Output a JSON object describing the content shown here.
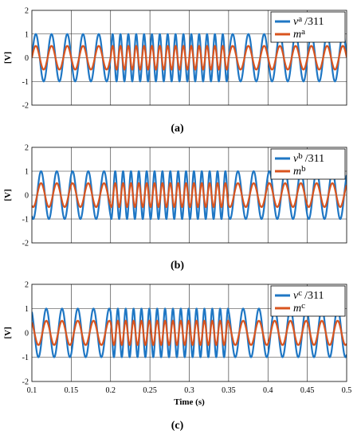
{
  "chart_data": [
    {
      "type": "line",
      "caption": "(a)",
      "xlabel": "",
      "ylabel": "[V]",
      "xlim": [
        0.1,
        0.5
      ],
      "ylim": [
        -2,
        2
      ],
      "x_ticks": [
        0.1,
        0.15,
        0.2,
        0.25,
        0.3,
        0.35,
        0.4,
        0.45,
        0.5
      ],
      "y_ticks": [
        -2,
        -1,
        0,
        1,
        2
      ],
      "show_x_tick_labels": false,
      "grid": true,
      "legend_position": "top-right",
      "waveform": {
        "shape": "sinusoid",
        "time_range": [
          0.1,
          0.5
        ],
        "frequency_segments": [
          {
            "t_start": 0.1,
            "t_end": 0.2,
            "frequency_hz": 50
          },
          {
            "t_start": 0.2,
            "t_end": 0.35,
            "frequency_hz": 100
          },
          {
            "t_start": 0.35,
            "t_end": 0.5,
            "frequency_hz": 50
          }
        ]
      },
      "series": [
        {
          "name": "v",
          "sup": "a",
          "suffix": "/311",
          "amplitude": 1.0,
          "phase_deg": 0,
          "color": "#1f77c4"
        },
        {
          "name": "m",
          "sup": "a",
          "suffix": "",
          "amplitude": 0.5,
          "phase_deg": 0,
          "color": "#d9541e"
        }
      ]
    },
    {
      "type": "line",
      "caption": "(b)",
      "xlabel": "",
      "ylabel": "[V]",
      "xlim": [
        0.1,
        0.5
      ],
      "ylim": [
        -2,
        2
      ],
      "x_ticks": [
        0.1,
        0.15,
        0.2,
        0.25,
        0.3,
        0.35,
        0.4,
        0.45,
        0.5
      ],
      "y_ticks": [
        -2,
        -1,
        0,
        1,
        2
      ],
      "show_x_tick_labels": false,
      "grid": true,
      "legend_position": "top-right",
      "waveform": {
        "shape": "sinusoid",
        "time_range": [
          0.1,
          0.5
        ],
        "frequency_segments": [
          {
            "t_start": 0.1,
            "t_end": 0.2,
            "frequency_hz": 50
          },
          {
            "t_start": 0.2,
            "t_end": 0.35,
            "frequency_hz": 100
          },
          {
            "t_start": 0.35,
            "t_end": 0.5,
            "frequency_hz": 50
          }
        ]
      },
      "series": [
        {
          "name": "v",
          "sup": "b",
          "suffix": "/311",
          "amplitude": 1.0,
          "phase_deg": -120,
          "color": "#1f77c4"
        },
        {
          "name": "m",
          "sup": "b",
          "suffix": "",
          "amplitude": 0.5,
          "phase_deg": -120,
          "color": "#d9541e"
        }
      ]
    },
    {
      "type": "line",
      "caption": "(c)",
      "xlabel": "Time (s)",
      "ylabel": "[V]",
      "xlim": [
        0.1,
        0.5
      ],
      "ylim": [
        -2,
        2
      ],
      "x_ticks": [
        0.1,
        0.15,
        0.2,
        0.25,
        0.3,
        0.35,
        0.4,
        0.45,
        0.5
      ],
      "y_ticks": [
        -2,
        -1,
        0,
        1,
        2
      ],
      "show_x_tick_labels": true,
      "grid": true,
      "legend_position": "top-right",
      "waveform": {
        "shape": "sinusoid",
        "time_range": [
          0.1,
          0.5
        ],
        "frequency_segments": [
          {
            "t_start": 0.1,
            "t_end": 0.2,
            "frequency_hz": 50
          },
          {
            "t_start": 0.2,
            "t_end": 0.35,
            "frequency_hz": 100
          },
          {
            "t_start": 0.35,
            "t_end": 0.5,
            "frequency_hz": 50
          }
        ]
      },
      "series": [
        {
          "name": "v",
          "sup": "c",
          "suffix": "/311",
          "amplitude": 1.0,
          "phase_deg": 120,
          "color": "#1f77c4"
        },
        {
          "name": "m",
          "sup": "c",
          "suffix": "",
          "amplitude": 0.5,
          "phase_deg": 120,
          "color": "#d9541e"
        }
      ]
    }
  ]
}
